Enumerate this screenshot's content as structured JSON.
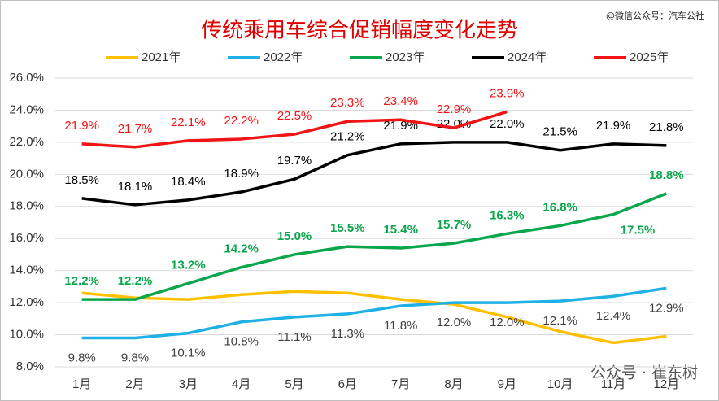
{
  "chart_data": {
    "type": "line",
    "title": "传统乘用车综合促销幅度变化走势",
    "annotations": [
      "@微信公众号：汽车公社",
      "公众号 · 崔东树"
    ],
    "categories": [
      "1月",
      "2月",
      "3月",
      "4月",
      "5月",
      "6月",
      "7月",
      "8月",
      "9月",
      "10月",
      "11月",
      "12月"
    ],
    "ylim": [
      8,
      26
    ],
    "yticks": [
      {
        "value": 8,
        "label": "8.0%"
      },
      {
        "value": 10,
        "label": "10.0%"
      },
      {
        "value": 12,
        "label": "12.0%"
      },
      {
        "value": 14,
        "label": "14.0%"
      },
      {
        "value": 16,
        "label": "16.0%"
      },
      {
        "value": 18,
        "label": "18.0%"
      },
      {
        "value": 20,
        "label": "20.0%"
      },
      {
        "value": 22,
        "label": "22.0%"
      },
      {
        "value": 24,
        "label": "24.0%"
      },
      {
        "value": 26,
        "label": "26.0%"
      }
    ],
    "grid": true,
    "legend": "top",
    "series": [
      {
        "name": "2021年",
        "color": "#ffc000",
        "values": [
          12.6,
          12.3,
          12.2,
          12.5,
          12.7,
          12.6,
          12.2,
          11.9,
          11.1,
          10.2,
          9.5,
          9.9
        ]
      },
      {
        "name": "2022年",
        "color": "#1fb0e6",
        "values": [
          9.8,
          9.8,
          10.1,
          10.8,
          11.1,
          11.3,
          11.8,
          12.0,
          12.0,
          12.1,
          12.4,
          12.9
        ],
        "value_labels": [
          "9.8%",
          "9.8%",
          "10.1%",
          "10.8%",
          "11.1%",
          "11.3%",
          "11.8%",
          "12.0%",
          "12.0%",
          "12.1%",
          "12.4%",
          "12.9%"
        ]
      },
      {
        "name": "2023年",
        "color": "#0aa64b",
        "values": [
          12.2,
          12.2,
          13.2,
          14.2,
          15.0,
          15.5,
          15.4,
          15.7,
          16.3,
          16.8,
          17.5,
          18.8
        ],
        "value_labels": [
          "12.2%",
          "12.2%",
          "13.2%",
          "14.2%",
          "15.0%",
          "15.5%",
          "15.4%",
          "15.7%",
          "16.3%",
          "16.8%",
          "17.5%",
          "18.8%"
        ]
      },
      {
        "name": "2024年",
        "color": "#000000",
        "values": [
          18.5,
          18.1,
          18.4,
          18.9,
          19.7,
          21.2,
          21.9,
          22.0,
          22.0,
          21.5,
          21.9,
          21.8
        ],
        "value_labels": [
          "18.5%",
          "18.1%",
          "18.4%",
          "18.9%",
          "19.7%",
          "21.2%",
          "21.9%",
          "22.0%",
          "22.0%",
          "21.5%",
          "21.9%",
          "21.8%"
        ]
      },
      {
        "name": "2025年",
        "color": "#f01414",
        "values": [
          21.9,
          21.7,
          22.1,
          22.2,
          22.5,
          23.3,
          23.4,
          22.9,
          23.9,
          null,
          null,
          null
        ],
        "value_labels": [
          "21.9%",
          "21.7%",
          "22.1%",
          "22.2%",
          "22.5%",
          "23.3%",
          "23.4%",
          "22.9%",
          "23.9%",
          null,
          null,
          null
        ]
      }
    ]
  }
}
